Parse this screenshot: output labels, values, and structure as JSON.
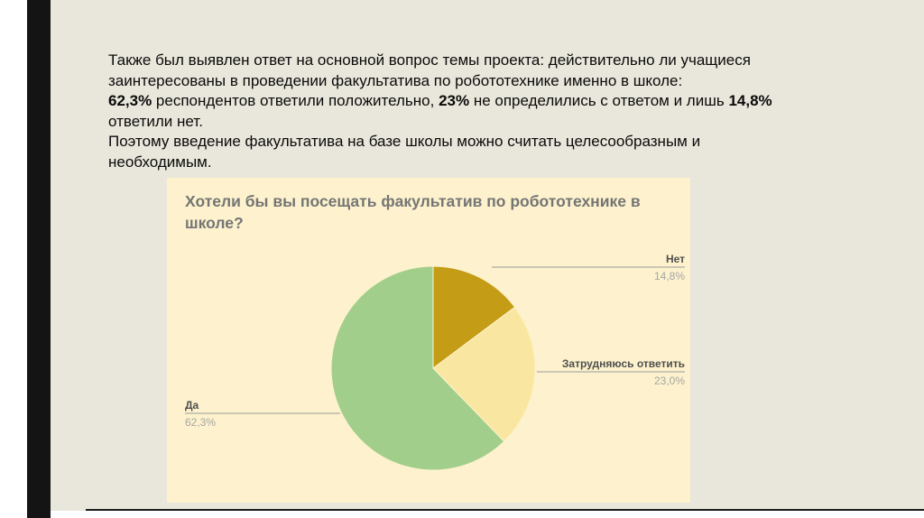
{
  "slide": {
    "paragraph": {
      "line1": "Также был выявлен ответ на основной вопрос темы проекта: действительно ли учащиеся",
      "line2": "заинтересованы в проведении факультатива по робототехнике именно в школе:",
      "line3_bold1": "62,3%",
      "line3_seg1": " респондентов ответили положительно, ",
      "line3_bold2": "23%",
      "line3_seg2": " не определились с ответом и лишь ",
      "line3_bold3": "14,8%",
      "line4": "ответили нет.",
      "line5": "Поэтому введение факультатива на базе школы можно считать целесообразным и",
      "line6": "необходимым."
    },
    "colors": {
      "background": "#e9e6db",
      "accent_bar": "#141414"
    }
  },
  "chart_data": {
    "type": "pie",
    "title": "Хотели бы вы посещать факультатив по робототехнике в школе?",
    "background": "#fdf2cd",
    "start_angle_deg": -90,
    "direction": "clockwise",
    "legend_position": "callout-labels",
    "slices": [
      {
        "label": "Нет",
        "value": 14.8,
        "percent_label": "14,8%",
        "color": "#c49c15"
      },
      {
        "label": "Затрудняюсь ответить",
        "value": 23.0,
        "percent_label": "23,0%",
        "color": "#f9e7a1"
      },
      {
        "label": "Да",
        "value": 62.3,
        "percent_label": "62,3%",
        "color": "#a2ce8c"
      }
    ]
  }
}
